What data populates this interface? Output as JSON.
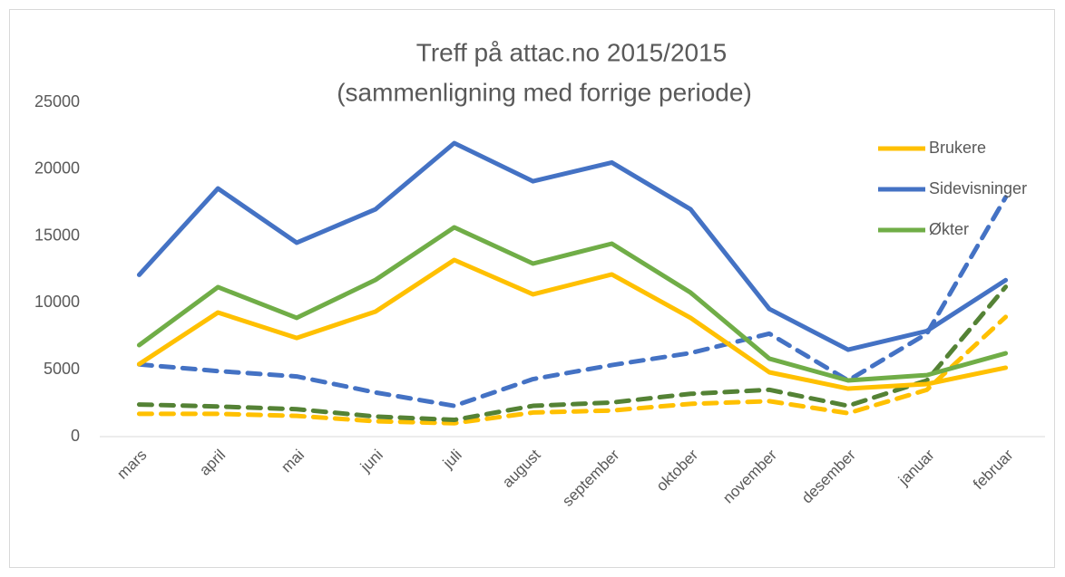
{
  "chart_data": {
    "type": "line",
    "title": [
      "Treff på  attac.no 2015/2015",
      "(sammenligning med forrige periode)"
    ],
    "categories": [
      "mars",
      "april",
      "mai",
      "juni",
      "juli",
      "august",
      "september",
      "oktober",
      "november",
      "desember",
      "januar",
      "februar"
    ],
    "ylim": [
      0,
      25000
    ],
    "yticks": [
      0,
      5000,
      10000,
      15000,
      20000,
      25000
    ],
    "grid": false,
    "legend": "right",
    "series": [
      {
        "name": "Brukere",
        "color": "#ffc000",
        "dashed": false,
        "values": [
          5420,
          9280,
          7380,
          9350,
          13210,
          10640,
          12130,
          8880,
          4810,
          3590,
          3930,
          5150
        ]
      },
      {
        "name": "Sidevisninger",
        "color": "#4472c4",
        "dashed": false,
        "values": [
          12100,
          18560,
          14500,
          17000,
          21950,
          19100,
          20500,
          17000,
          9550,
          6500,
          7900,
          11700
        ]
      },
      {
        "name": "Økter",
        "color": "#70ad47",
        "dashed": false,
        "values": [
          6840,
          11180,
          8880,
          11720,
          15650,
          12940,
          14430,
          10770,
          5830,
          4200,
          4600,
          6230
        ]
      },
      {
        "color": "#ffc000",
        "dashed": true,
        "values": [
          1700,
          1700,
          1550,
          1150,
          1000,
          1800,
          1950,
          2450,
          2650,
          1750,
          3500,
          8950
        ]
      },
      {
        "color": "#4472c4",
        "dashed": true,
        "values": [
          5400,
          4900,
          4500,
          3300,
          2300,
          4300,
          5350,
          6250,
          7700,
          4200,
          7700,
          17900
        ]
      },
      {
        "color": "#548235",
        "dashed": true,
        "values": [
          2400,
          2250,
          2050,
          1500,
          1250,
          2300,
          2550,
          3200,
          3500,
          2300,
          4200,
          11200
        ]
      }
    ]
  }
}
